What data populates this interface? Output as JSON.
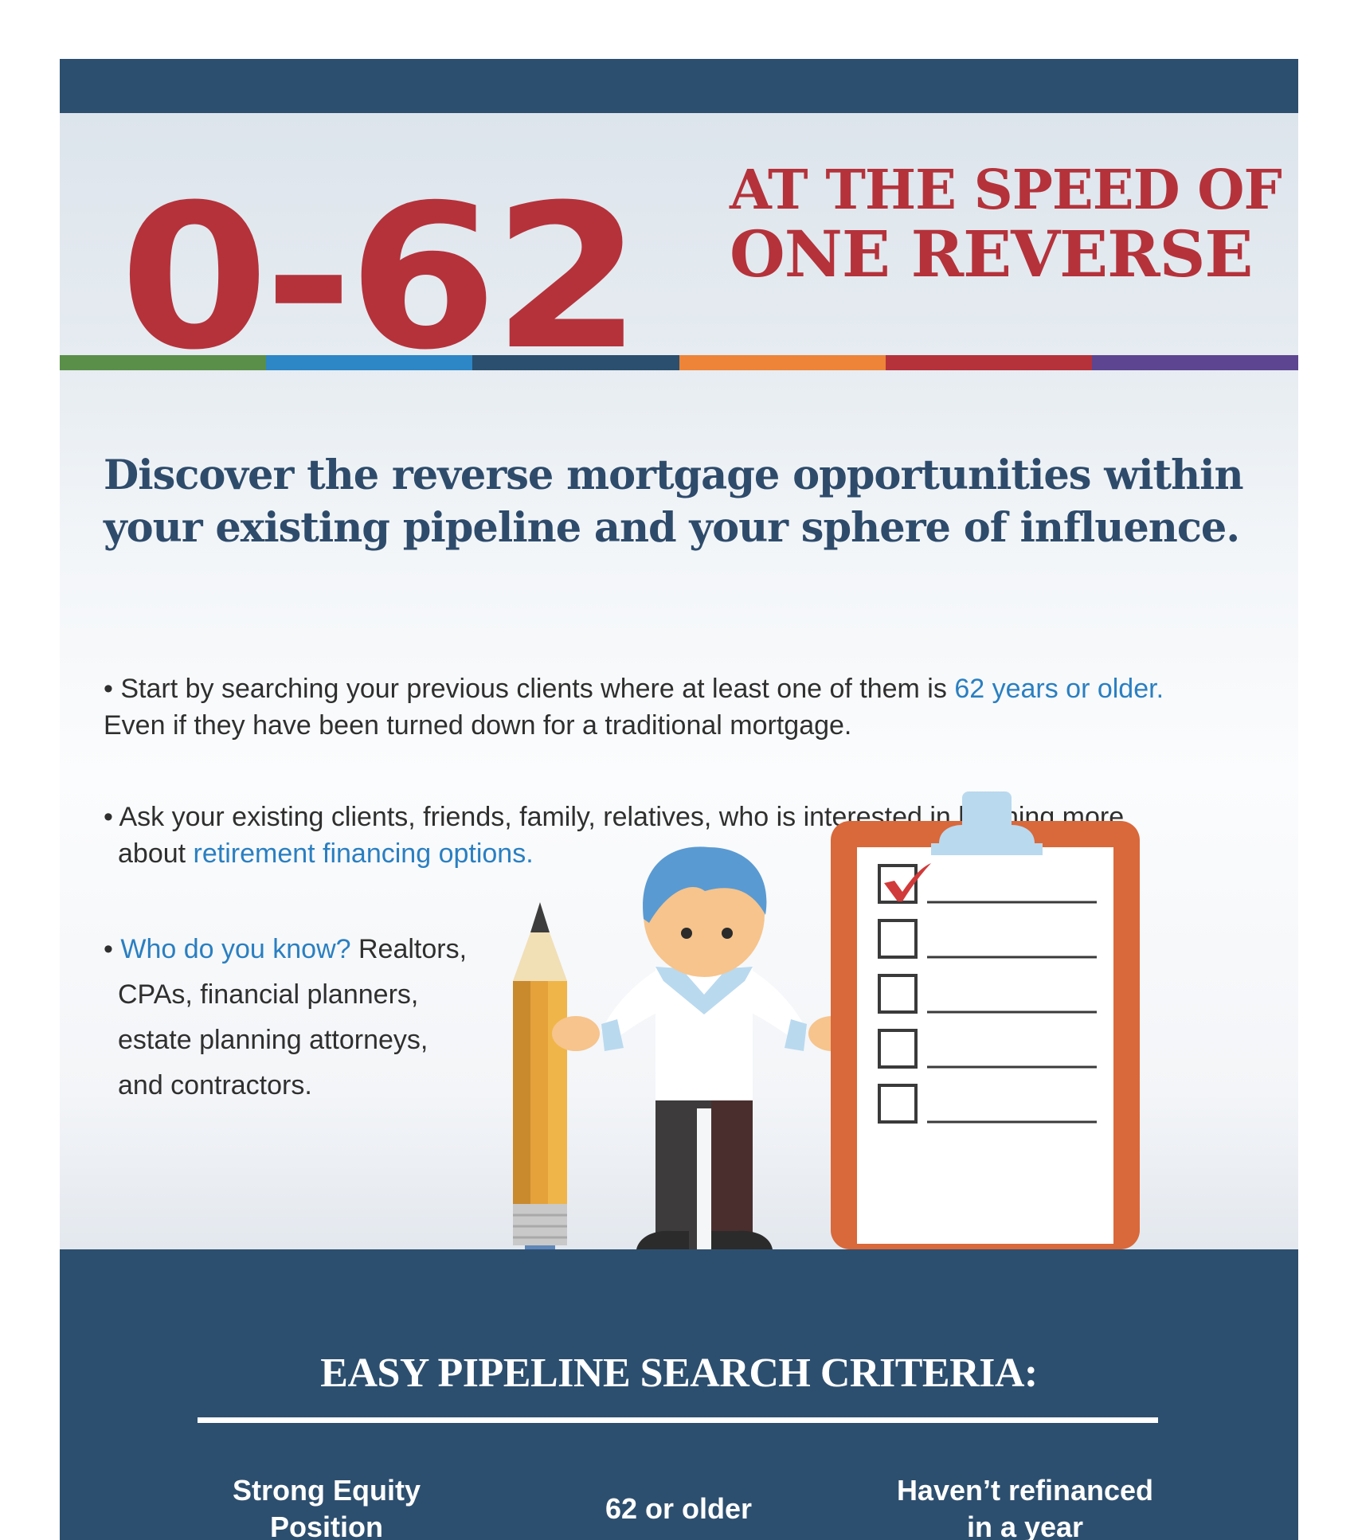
{
  "header": {
    "big_number": "0-62",
    "tagline_line1": "AT THE SPEED OF",
    "tagline_line2": "ONE REVERSE"
  },
  "stripe_colors": [
    "#5a8f4a",
    "#2d86c6",
    "#2a4f6f",
    "#ed8438",
    "#b5323b",
    "#5d4591"
  ],
  "headline_line1": "Discover the reverse mortgage opportunities within",
  "headline_line2": "your existing pipeline and your sphere of influence.",
  "bullets": {
    "b1_text": "• Start by searching your previous clients where at least one of them is ",
    "b1_highlight": "62 years or older.",
    "b1_line2": "Even if they have been turned down for a traditional mortgage.",
    "b2_text": "• Ask your existing clients, friends, family, relatives, who is interested in learning more",
    "b2_prefix": "about ",
    "b2_highlight": "retirement financing options.",
    "b3_bullet": "• ",
    "b3_highlight": "Who do you know?",
    "b3_text": " Realtors,",
    "b3_line2": "CPAs, financial planners,",
    "b3_line3": "estate planning attorneys,",
    "b3_line4": "and contractors."
  },
  "checklist": {
    "checked": 1,
    "total": 5
  },
  "footer": {
    "title": "EASY PIPELINE SEARCH CRITERIA:",
    "criteria": [
      {
        "line1": "Strong Equity",
        "line2": "Position"
      },
      {
        "line1": "62 or older"
      },
      {
        "line1": "Haven’t refinanced",
        "line2": "in a year"
      }
    ]
  },
  "colors": {
    "brand_navy": "#2d4f6f",
    "brand_red": "#b5323b",
    "accent_blue": "#2a7fc1",
    "clipboard_orange": "#d9683a"
  },
  "icons": [
    "pencil-icon",
    "person-illustration",
    "clipboard-icon",
    "checkmark-icon"
  ]
}
